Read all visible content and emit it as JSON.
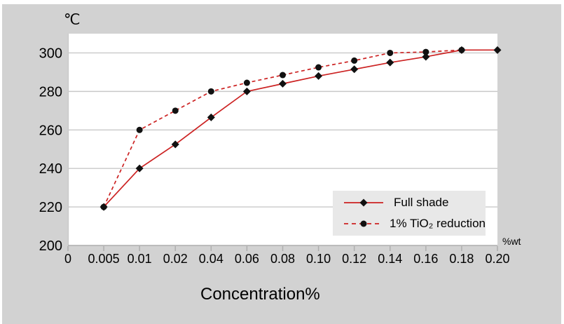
{
  "colors": {
    "panel_bg": "#d2d2d2",
    "plot_bg": "#ffffff",
    "legend_bg": "#e8e8e8",
    "grid": "#c9c9c9",
    "axis": "#aeaeae",
    "series_red": "#cc2222",
    "marker_black": "#111111",
    "text": "#000000"
  },
  "chart_data": {
    "type": "line",
    "y_unit_label": "℃",
    "x_unit_label": "%wt",
    "xlabel": "Concentration%",
    "categories": [
      "0",
      "0.005",
      "0.01",
      "0.02",
      "0.04",
      "0.06",
      "0.08",
      "0.10",
      "0.12",
      "0.14",
      "0.16",
      "0.18",
      "0.20"
    ],
    "y_ticks": [
      200,
      220,
      240,
      260,
      280,
      300
    ],
    "ylim": [
      200,
      310
    ],
    "grid": true,
    "legend_position": "inside-bottom-right",
    "series": [
      {
        "name": "Full shade",
        "color": "#cc2222",
        "line_style": "solid",
        "marker": "diamond",
        "marker_color": "#111111",
        "values": [
          null,
          220,
          240,
          252.5,
          266.5,
          280,
          284,
          288,
          291.5,
          295,
          298,
          301.5,
          301.5
        ]
      },
      {
        "name": "1% TiO₂ reduction",
        "color": "#cc2222",
        "line_style": "dashed",
        "marker": "circle",
        "marker_color": "#111111",
        "values": [
          null,
          220,
          260,
          270,
          280,
          284.5,
          288.5,
          292.5,
          296,
          300,
          300.5,
          301.5,
          null
        ]
      }
    ]
  }
}
